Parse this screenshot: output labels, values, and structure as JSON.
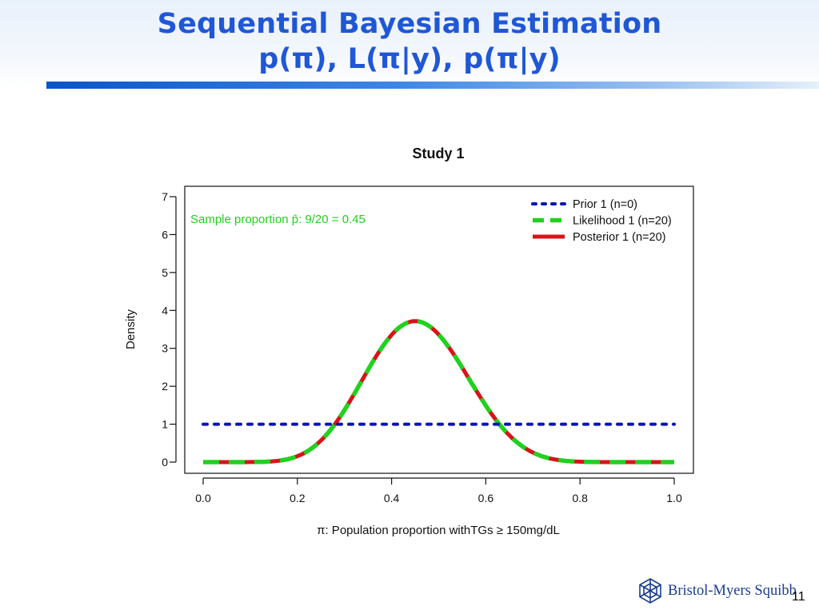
{
  "slide": {
    "title_line1": "Sequential Bayesian Estimation",
    "title_line2": "p(π), L(π|y), p(π|y)",
    "page_number": "11",
    "logo_text": "Bristol-Myers Squibb"
  },
  "chart_data": {
    "type": "line",
    "title": "Study 1",
    "xlabel": "π: Population proportion withTGs ≥ 150mg/dL",
    "ylabel": "Density",
    "xlim": [
      0,
      1
    ],
    "ylim": [
      0,
      7
    ],
    "xticks": [
      "0.0",
      "0.2",
      "0.4",
      "0.6",
      "0.8",
      "1.0"
    ],
    "yticks": [
      "0",
      "1",
      "2",
      "3",
      "4",
      "5",
      "6",
      "7"
    ],
    "grid": false,
    "legend_position": "top-right",
    "annotation": {
      "text": "Sample proportion p̂: 9/20 = 0.45",
      "color": "#22d11f"
    },
    "series": [
      {
        "name": "Prior 1 (n=0)",
        "color": "#0a14b4",
        "style": "dotted",
        "beta_a": 1,
        "beta_b": 1,
        "x": [
          0,
          0.25,
          0.5,
          0.75,
          1
        ],
        "y": [
          1,
          1,
          1,
          1,
          1
        ]
      },
      {
        "name": "Likelihood 1 (n=20)",
        "color": "#22d11f",
        "style": "dashed",
        "beta_a": 10,
        "beta_b": 12,
        "x": [
          0,
          0.1,
          0.2,
          0.25,
          0.3,
          0.35,
          0.4,
          0.45,
          0.5,
          0.55,
          0.6,
          0.65,
          0.7,
          0.75,
          0.8,
          0.9,
          1
        ],
        "y": [
          0,
          0.0,
          0.19,
          0.6,
          1.33,
          2.32,
          3.25,
          3.72,
          3.51,
          2.69,
          1.65,
          0.8,
          0.29,
          0.07,
          0.01,
          0.0,
          0
        ]
      },
      {
        "name": "Posterior 1 (n=20)",
        "color": "#d7141a",
        "style": "solid",
        "beta_a": 10,
        "beta_b": 12,
        "x": [
          0,
          0.1,
          0.2,
          0.25,
          0.3,
          0.35,
          0.4,
          0.45,
          0.5,
          0.55,
          0.6,
          0.65,
          0.7,
          0.75,
          0.8,
          0.9,
          1
        ],
        "y": [
          0,
          0.0,
          0.19,
          0.6,
          1.33,
          2.32,
          3.25,
          3.72,
          3.51,
          2.69,
          1.65,
          0.8,
          0.29,
          0.07,
          0.01,
          0.0,
          0
        ]
      }
    ]
  }
}
